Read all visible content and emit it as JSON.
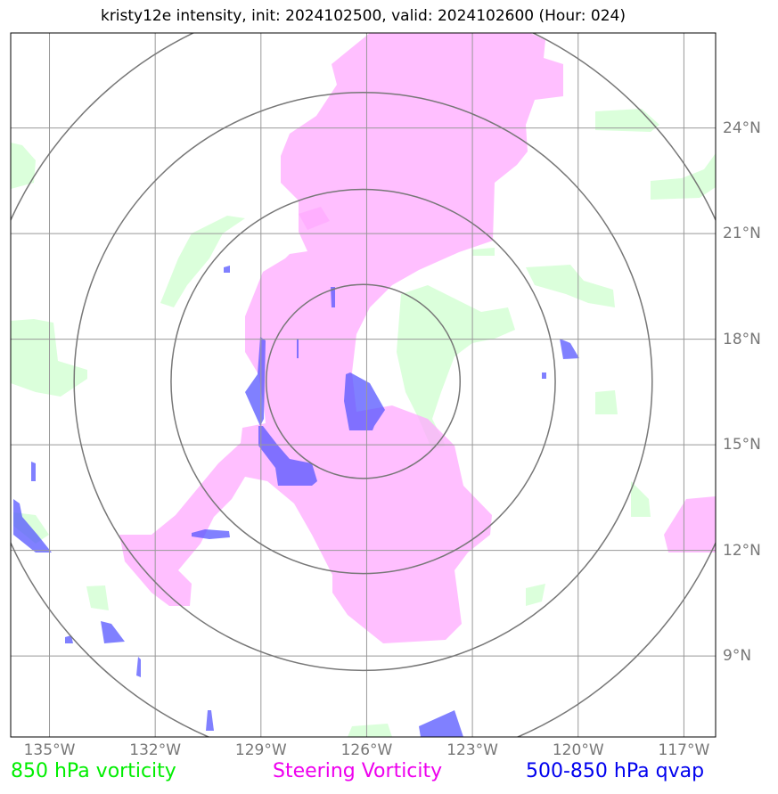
{
  "title": "kristy12e intensity, init: 2024102500, valid: 2024102600 (Hour: 024)",
  "map": {
    "lon_ticks": [
      "135°W",
      "132°W",
      "129°W",
      "126°W",
      "123°W",
      "120°W",
      "117°W"
    ],
    "lat_ticks": [
      "24°N",
      "21°N",
      "18°N",
      "15°N",
      "12°N",
      "9°N"
    ],
    "lon_values": [
      -135,
      -132,
      -129,
      -126,
      -123,
      -120,
      -117
    ],
    "lat_values": [
      24,
      21,
      18,
      15,
      12,
      9
    ],
    "extent": {
      "lon_min": -136.1,
      "lon_max": -116.1,
      "lat_min": 6.7,
      "lat_max": 26.7
    },
    "storm_center": {
      "lon": -126.1,
      "lat": 16.8
    },
    "range_rings_deg": [
      2.75,
      5.45,
      8.2,
      11.0
    ],
    "colors": {
      "vorticity_850": "#00ff00",
      "steering_vorticity": "#ff00ff",
      "qvap": "#0000ff"
    }
  },
  "legend": {
    "vorticity_850": "850 hPa vorticity",
    "steering_vorticity": "Steering Vorticity",
    "qvap": "500-850 hPa qvap"
  }
}
